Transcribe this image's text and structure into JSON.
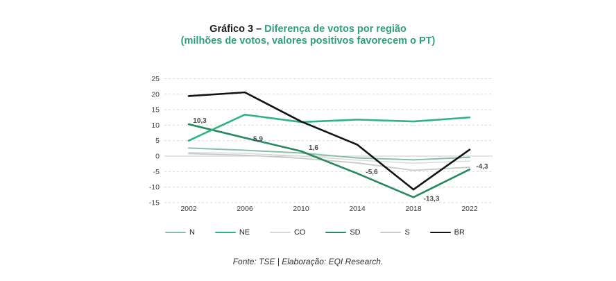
{
  "title": {
    "prefix": "Gráfico 3 – ",
    "highlight": "Diferença de votos por região",
    "subtitle": "(milhões de votos, valores positivos favorecem o PT)"
  },
  "source": "Fonte: TSE | Elaboração: EQI Research.",
  "colors": {
    "title_accent": "#2f9e7b",
    "grid": "#d9d9d9",
    "zero_line": "#c8c8c8",
    "axis_text": "#3d3d3d",
    "data_label": "#4a4a4a"
  },
  "chart_data": {
    "type": "line",
    "x": [
      2002,
      2006,
      2010,
      2014,
      2018,
      2022
    ],
    "series": [
      {
        "name": "N",
        "color": "#8abfa7",
        "width": 2,
        "values": [
          2.6,
          1.9,
          1.0,
          -0.6,
          -1.2,
          -0.4
        ]
      },
      {
        "name": "NE",
        "color": "#2eb384",
        "width": 2.6,
        "values": [
          5.0,
          13.4,
          11.0,
          11.8,
          11.2,
          12.5
        ]
      },
      {
        "name": "CO",
        "color": "#d8d8d8",
        "width": 1.4,
        "values": [
          1.2,
          0.9,
          0.0,
          -1.3,
          -2.3,
          -1.6
        ]
      },
      {
        "name": "SD",
        "color": "#28895f",
        "width": 2.6,
        "values": [
          10.3,
          5.9,
          1.6,
          -5.6,
          -13.3,
          -4.3
        ],
        "labels": [
          "10,3",
          "5,9",
          "1,6",
          "-5,6",
          "-13,3",
          "-4,3"
        ],
        "label_offsets": [
          [
            16,
            -2
          ],
          [
            19,
            5
          ],
          [
            18,
            -2
          ],
          [
            21,
            1
          ],
          [
            26,
            5
          ],
          [
            18,
            -1
          ]
        ]
      },
      {
        "name": "S",
        "color": "#c3cdc5",
        "width": 1.8,
        "values": [
          0.8,
          0.3,
          -0.7,
          -2.2,
          -4.6,
          -3.6
        ]
      },
      {
        "name": "BR",
        "color": "#121212",
        "width": 2.6,
        "values": [
          19.4,
          20.6,
          11.2,
          3.7,
          -10.8,
          2.1
        ]
      }
    ],
    "ylim": [
      -15,
      25
    ],
    "ytick_step": 5,
    "grid": "horizontal-dashed",
    "zero_line": "solid",
    "legend_position": "bottom",
    "legend_order": [
      "N",
      "NE",
      "CO",
      "SD",
      "S",
      "BR"
    ]
  }
}
